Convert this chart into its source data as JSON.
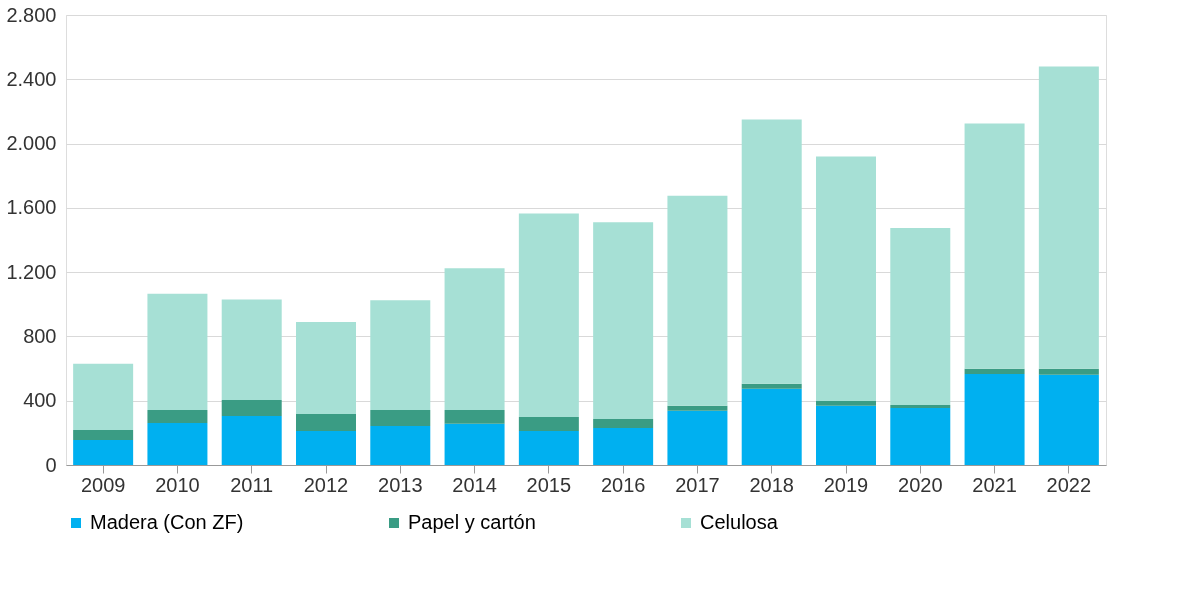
{
  "chart_data": {
    "type": "bar",
    "stacked": true,
    "categories": [
      "2009",
      "2010",
      "2011",
      "2012",
      "2013",
      "2014",
      "2015",
      "2016",
      "2017",
      "2018",
      "2019",
      "2020",
      "2021",
      "2022"
    ],
    "series": [
      {
        "name": "Madera (Con ZF)",
        "color": "#00b0f0",
        "values": [
          156,
          262,
          305,
          212,
          243,
          256,
          212,
          231,
          337,
          474,
          368,
          355,
          567,
          561
        ]
      },
      {
        "name": "Papel y cartón",
        "color": "#3a9c84",
        "values": [
          62,
          81,
          100,
          106,
          100,
          87,
          87,
          56,
          31,
          31,
          31,
          19,
          32,
          38
        ]
      },
      {
        "name": "Celulosa",
        "color": "#a6e0d5",
        "values": [
          412,
          723,
          625,
          572,
          682,
          882,
          1266,
          1223,
          1307,
          1645,
          1521,
          1101,
          1526,
          1881
        ]
      }
    ],
    "ylim": [
      0,
      2800
    ],
    "yticks": [
      0,
      400,
      800,
      {
        "value": 1200,
        "label": "1.200"
      },
      {
        "value": 1600,
        "label": "1.600"
      },
      {
        "value": 2000,
        "label": "2.000"
      },
      {
        "value": 2400,
        "label": "2.400"
      },
      {
        "value": 2800,
        "label": "2.800"
      }
    ],
    "grid": "y",
    "legend": "bottom"
  }
}
